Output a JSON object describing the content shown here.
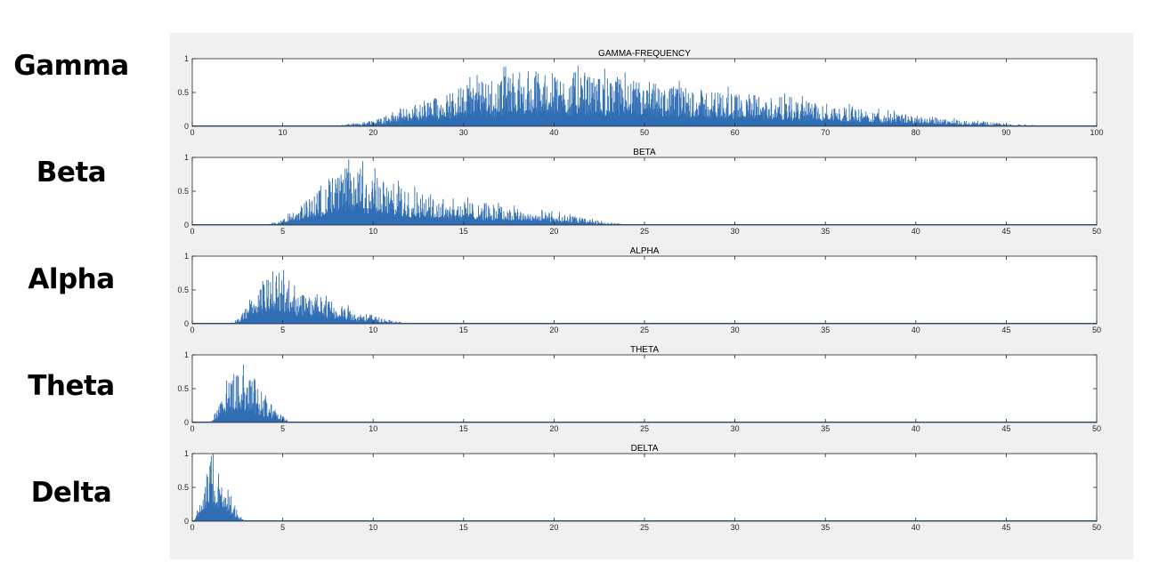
{
  "row_labels": [
    "Gamma",
    "Beta",
    "Alpha",
    "Theta",
    "Delta"
  ],
  "colors": {
    "line": "#2f6db5",
    "axis": "#262626",
    "figure_bg": "#f0f0f0",
    "axes_bg": "#ffffff"
  },
  "chart_data": [
    {
      "type": "area",
      "title": "GAMMA-FREQUENCY",
      "xlim": [
        0,
        100
      ],
      "ylim": [
        0,
        1
      ],
      "xticks": [
        0,
        10,
        20,
        30,
        40,
        50,
        60,
        70,
        80,
        90,
        100
      ],
      "yticks": [
        0,
        0.5,
        1
      ],
      "series": [
        {
          "x": [
            0,
            10,
            15,
            18,
            20,
            25,
            30,
            35,
            40,
            45,
            50,
            55,
            60,
            65,
            70,
            75,
            80,
            85,
            90,
            95,
            100
          ],
          "y": [
            0,
            0,
            0.005,
            0.03,
            0.08,
            0.26,
            0.45,
            0.58,
            0.6,
            0.56,
            0.48,
            0.42,
            0.37,
            0.32,
            0.25,
            0.18,
            0.12,
            0.07,
            0.03,
            0.005,
            0
          ]
        }
      ]
    },
    {
      "type": "area",
      "title": "BETA",
      "xlim": [
        0,
        50
      ],
      "ylim": [
        0,
        1
      ],
      "xticks": [
        0,
        5,
        10,
        15,
        20,
        25,
        30,
        35,
        40,
        45,
        50
      ],
      "yticks": [
        0,
        0.5,
        1
      ],
      "series": [
        {
          "x": [
            0,
            4,
            5,
            6,
            7,
            8,
            9,
            10,
            11,
            12,
            14,
            16,
            18,
            20,
            22,
            23,
            24,
            25,
            50
          ],
          "y": [
            0,
            0,
            0.06,
            0.22,
            0.42,
            0.58,
            0.65,
            0.55,
            0.45,
            0.38,
            0.3,
            0.24,
            0.18,
            0.13,
            0.07,
            0.03,
            0.01,
            0,
            0
          ]
        }
      ]
    },
    {
      "type": "area",
      "title": "ALPHA",
      "xlim": [
        0,
        50
      ],
      "ylim": [
        0,
        1
      ],
      "xticks": [
        0,
        5,
        10,
        15,
        20,
        25,
        30,
        35,
        40,
        45,
        50
      ],
      "yticks": [
        0,
        0.5,
        1
      ],
      "series": [
        {
          "x": [
            0,
            2,
            2.5,
            3,
            3.5,
            4,
            4.5,
            5,
            6,
            7,
            8,
            9,
            10,
            11,
            12,
            50
          ],
          "y": [
            0,
            0,
            0.05,
            0.2,
            0.38,
            0.52,
            0.58,
            0.52,
            0.4,
            0.3,
            0.22,
            0.15,
            0.09,
            0.04,
            0,
            0
          ]
        }
      ]
    },
    {
      "type": "area",
      "title": "THETA",
      "xlim": [
        0,
        50
      ],
      "ylim": [
        0,
        1
      ],
      "xticks": [
        0,
        5,
        10,
        15,
        20,
        25,
        30,
        35,
        40,
        45,
        50
      ],
      "yticks": [
        0,
        0.5,
        1
      ],
      "series": [
        {
          "x": [
            0,
            1,
            1.5,
            2,
            2.5,
            3,
            3.5,
            4,
            4.5,
            5,
            5.5,
            50
          ],
          "y": [
            0,
            0,
            0.2,
            0.45,
            0.62,
            0.52,
            0.4,
            0.27,
            0.16,
            0.07,
            0,
            0
          ]
        }
      ]
    },
    {
      "type": "area",
      "title": "DELTA",
      "xlim": [
        0,
        50
      ],
      "ylim": [
        0,
        1
      ],
      "xticks": [
        0,
        5,
        10,
        15,
        20,
        25,
        30,
        35,
        40,
        45,
        50
      ],
      "yticks": [
        0,
        0.5,
        1
      ],
      "series": [
        {
          "x": [
            0,
            0.2,
            0.5,
            0.8,
            1,
            1.3,
            1.6,
            2,
            2.3,
            2.6,
            3,
            50
          ],
          "y": [
            0,
            0.05,
            0.4,
            0.65,
            0.72,
            0.66,
            0.55,
            0.35,
            0.2,
            0.08,
            0,
            0
          ]
        }
      ]
    }
  ]
}
